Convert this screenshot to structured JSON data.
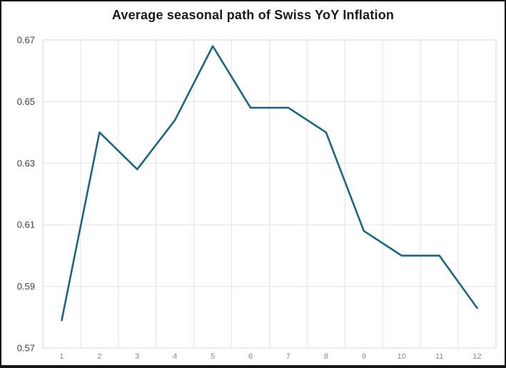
{
  "chart_data": {
    "type": "line",
    "title": "Average seasonal path of Swiss YoY Inflation",
    "categories": [
      "1",
      "2",
      "3",
      "4",
      "5",
      "6",
      "7",
      "8",
      "9",
      "10",
      "11",
      "12"
    ],
    "values": [
      0.579,
      0.64,
      0.628,
      0.644,
      0.668,
      0.648,
      0.648,
      0.64,
      0.608,
      0.6,
      0.6,
      0.583
    ],
    "xlabel": "",
    "ylabel": "",
    "ylim": [
      0.57,
      0.67
    ],
    "yticks": [
      0.57,
      0.59,
      0.61,
      0.63,
      0.65,
      0.67
    ],
    "ytick_decimals": 2,
    "grid": true,
    "legend": "none",
    "colors": {
      "line": "#1b6688",
      "grid": "#e2e2e2",
      "plot_border": "#e2e2e2",
      "y_tick_label": "#3f3f3f",
      "x_tick_label": "#8a8a8a",
      "title": "#1a1a1a",
      "background": "#ffffff",
      "frame_border": "#141414"
    }
  }
}
